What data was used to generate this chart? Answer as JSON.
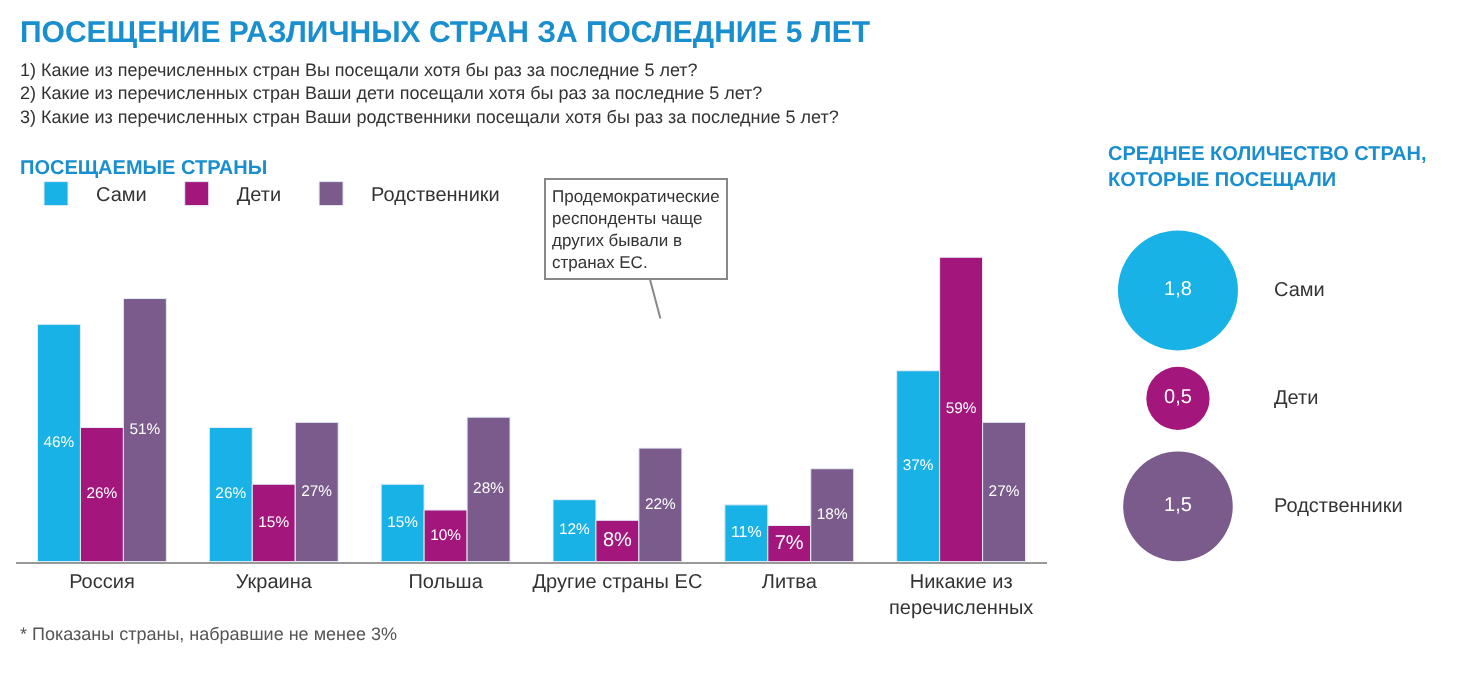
{
  "chart_data": [
    {
      "type": "bar",
      "title": "ПОСЕЩЕНИЕ РАЗЛИЧНЫХ СТРАН ЗА ПОСЛЕДНИЕ 5 ЛЕТ",
      "subtitle": "1) Какие из перечисленных стран Вы посещали хотя бы раз за последние 5 лет?\n2) Какие из перечисленных стран Ваши дети посещали хотя бы раз за последние 5 лет?\n3) Какие из перечисленных стран Ваши родственники посещали хотя бы раз за последние 5 лет?",
      "xlabel": "ПОСЕЩАЕМЫЕ СТРАНЫ",
      "categories": [
        "Россия",
        "Украина",
        "Польша",
        "Другие страны ЕС",
        "Литва",
        "Никакие из\nперечисленных"
      ],
      "series": [
        {
          "name": "Сами",
          "color": "#19b2e6",
          "values": [
            46,
            26,
            15,
            12,
            11,
            37
          ],
          "value_labels": [
            "46%",
            "26%",
            "15%",
            "12%",
            "11%",
            "37%"
          ]
        },
        {
          "name": "Дети",
          "color": "#a3177d",
          "values": [
            26,
            15,
            10,
            8,
            7,
            59
          ],
          "value_labels": [
            "26%",
            "15%",
            "10%",
            "8%",
            "7%",
            "59%"
          ]
        },
        {
          "name": "Родственники",
          "color": "#7a5b8b",
          "values": [
            51,
            27,
            28,
            22,
            18,
            27
          ],
          "value_labels": [
            "51%",
            "27%",
            "28%",
            "22%",
            "18%",
            "27%"
          ]
        }
      ],
      "legend": "top left",
      "annotations": [
        "Продемократические\nреспонденты чаще\nдругих бывали в\nстранах ЕС.",
        "* Показаны страны, набравшие не менее 3%"
      ]
    },
    {
      "type": "other",
      "title": "СРЕДНЕЕ КОЛИЧЕСТВО СТРАН,\nКОТОРЫЕ ПОСЕЩАЛИ",
      "categories": [
        "Сами",
        "Дети",
        "Родственники"
      ],
      "values": [
        1.8,
        0.5,
        1.5
      ],
      "value_labels": [
        "1,8",
        "0,5",
        "1,5"
      ],
      "colors": [
        "#19b2e6",
        "#a3177d",
        "#7a5b8b"
      ]
    }
  ]
}
